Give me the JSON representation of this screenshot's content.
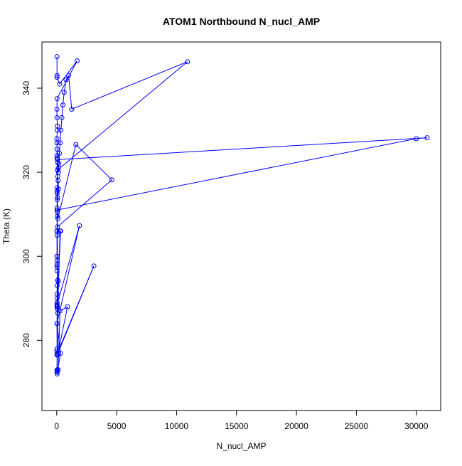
{
  "chart_data": {
    "type": "line",
    "title": "ATOM1 Northbound N_nucl_AMP",
    "xlabel": "N_nucl_AMP",
    "ylabel": "Theta (K)",
    "xlim": [
      -1232,
      32032
    ],
    "ylim": [
      263.3,
      351.0
    ],
    "x_ticks": [
      0,
      5000,
      10000,
      15000,
      20000,
      25000,
      30000
    ],
    "x_tick_labels": [
      "0",
      "5000",
      "10000",
      "15000",
      "20000",
      "25000",
      "30000"
    ],
    "y_ticks": [
      280,
      300,
      320,
      340
    ],
    "y_tick_labels": [
      "280",
      "300",
      "320",
      "340"
    ],
    "grid": false,
    "legend": "none",
    "series_color": "#0000ff",
    "marker": "open-circle",
    "series": [
      {
        "x": [
          20,
          30,
          20,
          240,
          1700,
          30,
          20,
          20,
          60,
          50,
          10,
          20,
          30,
          20,
          40,
          60,
          80,
          130,
          150,
          180,
          220,
          290,
          350,
          430,
          520,
          620,
          780,
          1000,
          1250,
          10900,
          60,
          90,
          120,
          150,
          60,
          40,
          20,
          30,
          30,
          30,
          40,
          60,
          100,
          1600,
          4600,
          60,
          40,
          20,
          30,
          30,
          30,
          30,
          30,
          30,
          80,
          120,
          30,
          30,
          30,
          30,
          40,
          80,
          280,
          330,
          30,
          1900,
          20,
          30,
          30,
          3100,
          40,
          30,
          30,
          30,
          130,
          270,
          900,
          110,
          30,
          30,
          30,
          30000,
          30900,
          60,
          60,
          30,
          30,
          30,
          320,
          30,
          30,
          20
        ],
        "y": [
          347.5,
          343.0,
          342.6,
          341.0,
          346.5,
          337.5,
          335.0,
          333.0,
          331.0,
          330.0,
          328.0,
          327.0,
          325.5,
          324.0,
          323.4,
          323.0,
          322.3,
          321.0,
          320.0,
          322.0,
          324.5,
          327.0,
          330.0,
          333.0,
          336.0,
          339.0,
          342.0,
          343.0,
          335.0,
          346.3,
          320.5,
          319.0,
          318.0,
          316.0,
          314.0,
          313.5,
          316.3,
          315.5,
          315.0,
          311.5,
          310.5,
          309.5,
          309.0,
          326.6,
          318.2,
          307.0,
          306.0,
          306.0,
          305.0,
          300.0,
          299.0,
          298.0,
          297.5,
          296.5,
          294.3,
          294.0,
          293.0,
          291.0,
          289.0,
          288.3,
          287.5,
          286.5,
          306.0,
          306.0,
          288.5,
          307.3,
          284.0,
          278.0,
          276.8,
          297.7,
          276.5,
          273.0,
          272.7,
          272.4,
          273.0,
          287.0,
          288.0,
          276.9,
          300.0,
          298.0,
          311.0,
          328.0,
          328.2,
          323.0,
          288.0,
          290.0,
          288.0,
          284.0,
          276.9,
          272.0,
          276.5,
          277.5
        ]
      }
    ]
  }
}
